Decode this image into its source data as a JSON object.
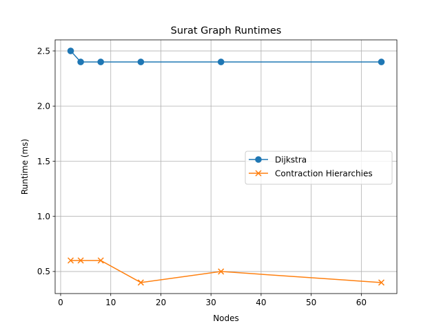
{
  "chart_data": {
    "type": "line",
    "title": "Surat Graph Runtimes",
    "xlabel": "Nodes",
    "ylabel": "Runtime (ms)",
    "xlim": [
      -1.1,
      67.1
    ],
    "ylim": [
      0.3,
      2.6
    ],
    "xticks": [
      0,
      10,
      20,
      30,
      40,
      50,
      60
    ],
    "yticks": [
      0.5,
      1.0,
      1.5,
      2.0,
      2.5
    ],
    "xtick_labels": [
      "0",
      "10",
      "20",
      "30",
      "40",
      "50",
      "60"
    ],
    "ytick_labels": [
      "0.5",
      "1.0",
      "1.5",
      "2.0",
      "2.5"
    ],
    "grid": true,
    "legend_position": "center-right",
    "series": [
      {
        "name": "Dijkstra",
        "color": "#1f77b4",
        "marker": "circle",
        "x": [
          2,
          4,
          8,
          16,
          32,
          64
        ],
        "y": [
          2.5,
          2.4,
          2.4,
          2.4,
          2.4,
          2.4
        ]
      },
      {
        "name": "Contraction Hierarchies",
        "color": "#ff7f0e",
        "marker": "x",
        "x": [
          2,
          4,
          8,
          16,
          32,
          64
        ],
        "y": [
          0.6,
          0.6,
          0.6,
          0.4,
          0.5,
          0.4
        ]
      }
    ]
  }
}
